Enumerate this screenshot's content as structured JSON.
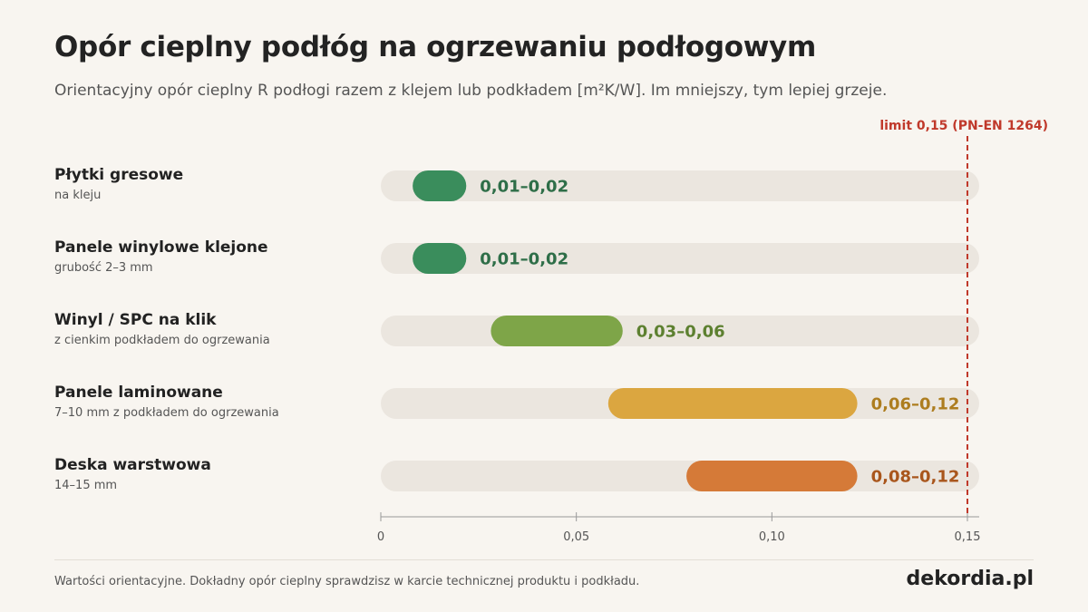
{
  "header": {
    "title": "Opór cieplny podłóg na ogrzewaniu podłogowym",
    "subtitle": "Orientacyjny opór cieplny R podłogi razem z klejem lub podkładem [m²K/W]. Im mniejszy, tym lepiej grzeje."
  },
  "chart_data": {
    "type": "bar",
    "orientation": "horizontal-range",
    "title": "Opór cieplny podłóg na ogrzewaniu podłogowym",
    "xlim": [
      0,
      0.15
    ],
    "xticks": [
      0,
      0.05,
      0.1,
      0.15
    ],
    "xtick_labels": [
      "0",
      "0,05",
      "0,10",
      "0,15"
    ],
    "grid": false,
    "reference_line": {
      "value": 0.15,
      "label": "limit 0,15 (PN-EN 1264)",
      "color": "#c0392b",
      "style": "dashed"
    },
    "rows": [
      {
        "name": "Płytki gresowe",
        "sub": "na kleju",
        "min": 0.01,
        "max": 0.02,
        "label": "0,01–0,02",
        "color": "#3a8d5c",
        "label_color": "#2e6e48"
      },
      {
        "name": "Panele winylowe klejone",
        "sub": "grubość 2–3 mm",
        "min": 0.01,
        "max": 0.02,
        "label": "0,01–0,02",
        "color": "#3a8d5c",
        "label_color": "#2e6e48"
      },
      {
        "name": "Winyl / SPC na klik",
        "sub": "z cienkim podkładem do ogrzewania",
        "min": 0.03,
        "max": 0.06,
        "label": "0,03–0,06",
        "color": "#7ea548",
        "label_color": "#5d8030"
      },
      {
        "name": "Panele laminowane",
        "sub": "7–10 mm z podkładem do ogrzewania",
        "min": 0.06,
        "max": 0.12,
        "label": "0,06–0,12",
        "color": "#dba640",
        "label_color": "#ad7d1f"
      },
      {
        "name": "Deska warstwowa",
        "sub": "14–15 mm",
        "min": 0.08,
        "max": 0.12,
        "label": "0,08–0,12",
        "color": "#d57a38",
        "label_color": "#a9561c"
      }
    ]
  },
  "footer": {
    "note": "Wartości orientacyjne. Dokładny opór cieplny sprawdzisz w karcie technicznej produktu i podkładu.",
    "brand": "dekordia.pl"
  },
  "colors": {
    "background": "#f8f5f0",
    "track": "#ebe6df",
    "axis": "#999999"
  }
}
